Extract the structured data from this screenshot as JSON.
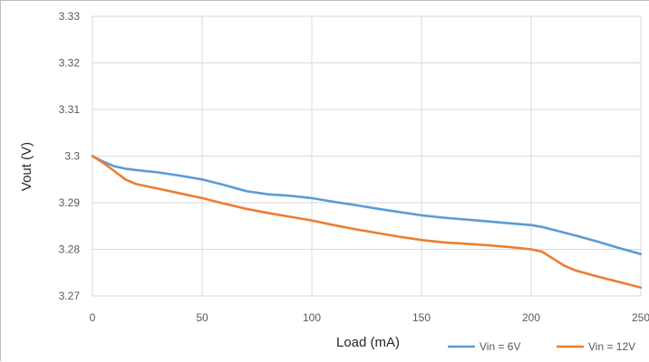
{
  "chart_data": {
    "type": "line",
    "xlabel": "Load (mA)",
    "ylabel": "Vout (V)",
    "xlim": [
      0,
      250
    ],
    "ylim": [
      3.27,
      3.33
    ],
    "x_ticks": [
      "0",
      "50",
      "100",
      "150",
      "200",
      "250"
    ],
    "y_ticks": [
      "3.27",
      "3.28",
      "3.29",
      "3.3",
      "3.31",
      "3.32",
      "3.33"
    ],
    "grid": true,
    "legend_position": "bottom-right",
    "series": [
      {
        "name": "Vin = 6V",
        "color": "#5b9bd5",
        "x": [
          0,
          5,
          10,
          15,
          20,
          30,
          40,
          50,
          60,
          70,
          80,
          90,
          100,
          110,
          120,
          130,
          140,
          150,
          160,
          170,
          180,
          190,
          200,
          205,
          210,
          220,
          230,
          240,
          250
        ],
        "y": [
          3.3,
          3.2988,
          3.2978,
          3.2973,
          3.297,
          3.2965,
          3.2958,
          3.295,
          3.2938,
          3.2925,
          3.2918,
          3.2915,
          3.291,
          3.2902,
          3.2895,
          3.2887,
          3.288,
          3.2873,
          3.2868,
          3.2864,
          3.286,
          3.2856,
          3.2852,
          3.2848,
          3.2842,
          3.283,
          3.2817,
          3.2803,
          3.279
        ]
      },
      {
        "name": "Vin = 12V",
        "color": "#ed7d31",
        "x": [
          0,
          5,
          10,
          15,
          20,
          30,
          40,
          50,
          60,
          70,
          80,
          90,
          100,
          110,
          120,
          130,
          140,
          150,
          160,
          170,
          180,
          190,
          200,
          205,
          210,
          215,
          220,
          230,
          240,
          250
        ],
        "y": [
          3.3,
          3.2985,
          3.2968,
          3.295,
          3.294,
          3.293,
          3.292,
          3.291,
          3.2898,
          3.2887,
          3.2878,
          3.287,
          3.2862,
          3.2852,
          3.2843,
          3.2835,
          3.2827,
          3.282,
          3.2815,
          3.2812,
          3.2809,
          3.2805,
          3.28,
          3.2795,
          3.278,
          3.2765,
          3.2755,
          3.2742,
          3.273,
          3.2718
        ]
      }
    ]
  }
}
